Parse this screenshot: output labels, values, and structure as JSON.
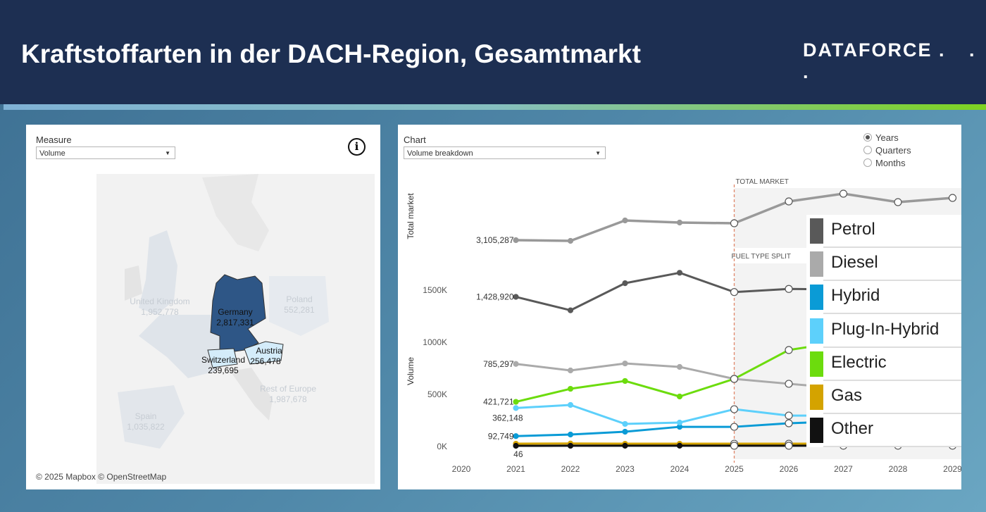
{
  "header": {
    "title": "Kraftstoffarten in der DACH-Region, Gesamtmarkt",
    "logo_text": "DATAFORCE",
    "logo_dots": ". . ."
  },
  "left": {
    "measure_label": "Measure",
    "measure_value": "Volume",
    "info_icon": "info-circle-icon",
    "attribution": "© 2025 Mapbox  © OpenStreetMap",
    "countries": [
      {
        "name": "Germany",
        "value": "2,817,331",
        "highlight": "dark"
      },
      {
        "name": "Switzerland",
        "value": "239,695",
        "highlight": "light"
      },
      {
        "name": "Austria",
        "value": "256,478",
        "highlight": "light"
      },
      {
        "name": "United Kingdom",
        "value": "1,952,778",
        "highlight": "none"
      },
      {
        "name": "Poland",
        "value": "552,281",
        "highlight": "none"
      },
      {
        "name": "Rest of Europe",
        "value": "1,987,678",
        "highlight": "none"
      },
      {
        "name": "Spain",
        "value": "1,035,822",
        "highlight": "none"
      }
    ],
    "colors": {
      "dark": "#2e5686",
      "light": "#d4ecfa",
      "none": "#dfe4ea"
    }
  },
  "right": {
    "chart_label": "Chart",
    "chart_value": "Volume breakdown",
    "granularity": [
      {
        "label": "Years",
        "selected": true
      },
      {
        "label": "Quarters",
        "selected": false
      },
      {
        "label": "Months",
        "selected": false
      }
    ]
  },
  "chart_data": {
    "type": "line",
    "x": [
      2021,
      2022,
      2023,
      2024,
      2025,
      2026,
      2027,
      2028,
      2029
    ],
    "x_ticks": [
      "2020",
      "2021",
      "2022",
      "2023",
      "2024",
      "2025",
      "2026",
      "2027",
      "2028",
      "2029"
    ],
    "forecast_start": 2025,
    "total_market": {
      "section_label": "TOTAL MARKET",
      "ylabel": "Total market",
      "color": "#999999",
      "values": [
        3105287,
        3095000,
        3385000,
        3355000,
        3345000,
        3655000,
        3765000,
        3645000,
        3705000
      ],
      "start_label": "3,105,287"
    },
    "split": {
      "section_label": "FUEL TYPE SPLIT",
      "ylabel": "Volume",
      "yticks": [
        "0K",
        "500K",
        "1000K",
        "1500K"
      ],
      "ylim": [
        0,
        1800000
      ],
      "series": [
        {
          "name": "Petrol",
          "color": "#595959",
          "values": [
            1428920,
            1300000,
            1560000,
            1660000,
            1475000,
            1505000,
            1500000,
            1490000,
            1480000
          ],
          "start_label": "1,428,920"
        },
        {
          "name": "Diesel",
          "color": "#aaaaaa",
          "values": [
            785297,
            723000,
            790000,
            757000,
            642000,
            595000,
            550000,
            520000,
            500000
          ],
          "start_label": "785,297"
        },
        {
          "name": "Hybrid",
          "color": "#0a9bd6",
          "values": [
            92749,
            108000,
            135000,
            182000,
            182000,
            216000,
            236000,
            250000,
            260000
          ],
          "start_label": "92,749"
        },
        {
          "name": "Plug-In-Hybrid",
          "color": "#5dd0fb",
          "values": [
            362148,
            392000,
            210000,
            223000,
            351000,
            290000,
            290000,
            285000,
            280000
          ],
          "start_label": "362,148"
        },
        {
          "name": "Electric",
          "color": "#6cdc0d",
          "values": [
            421721,
            547000,
            622000,
            473000,
            642000,
            919000,
            1000000,
            1080000,
            1150000
          ],
          "start_label": "421,721"
        },
        {
          "name": "Gas",
          "color": "#d4a300",
          "values": [
            20000,
            22000,
            20000,
            20000,
            20000,
            20000,
            20000,
            20000,
            20000
          ],
          "start_label": ""
        },
        {
          "name": "Other",
          "color": "#111111",
          "values": [
            46,
            500,
            600,
            700,
            800,
            900,
            1000,
            1000,
            1000
          ],
          "start_label": "46"
        }
      ]
    },
    "legend_placement": "right"
  }
}
